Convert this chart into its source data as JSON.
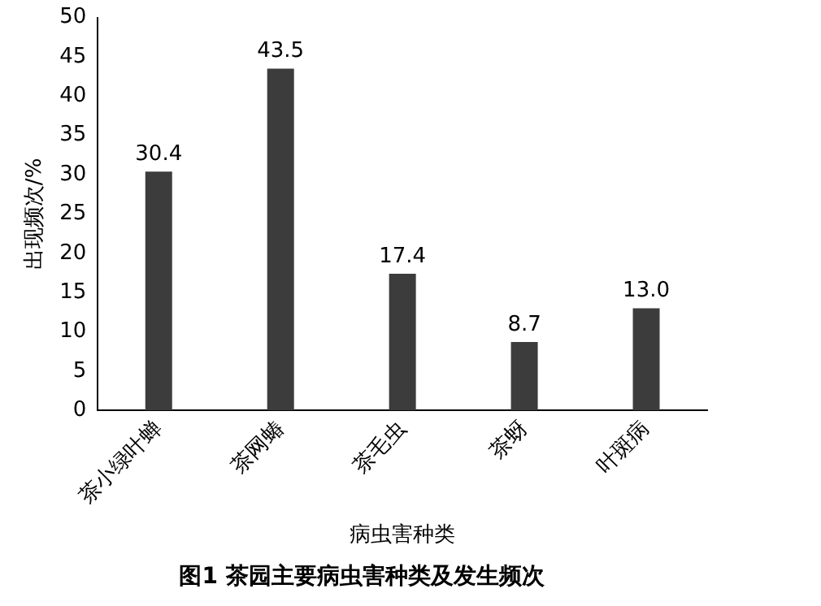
{
  "chart_data": {
    "type": "bar",
    "title": "图1 茶园主要病虫害种类及发生频次",
    "xlabel": "病虫害种类",
    "ylabel": "出现频次/%",
    "categories": [
      "茶小绿叶蝉",
      "茶网蝽",
      "茶毛虫",
      "茶蚜",
      "叶斑病"
    ],
    "values": [
      30.4,
      43.5,
      17.4,
      8.7,
      13.0
    ],
    "value_labels": [
      "30.4",
      "43.5",
      "17.4",
      "8.7",
      "13.0"
    ],
    "color": "#3c3c3c",
    "ylim": [
      0,
      50
    ],
    "yticks": [
      0,
      5,
      10,
      15,
      20,
      25,
      30,
      35,
      40,
      45,
      50
    ],
    "grid": false,
    "legend": false
  }
}
